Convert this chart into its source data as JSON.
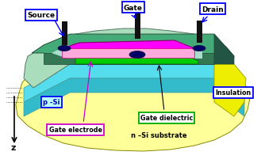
{
  "bg_color": "#ffffff",
  "labels": {
    "source": "Source",
    "gate": "Gate",
    "drain": "Drain",
    "p_si": "p -Si",
    "gate_electrode": "Gate electrode",
    "gate_dielectric": "Gate dielectric",
    "n_si_substrate": "n –Si substrate",
    "insulation": "Insulation"
  },
  "colors": {
    "substrate_yellow": "#ffff99",
    "p_si_cyan": "#55ddee",
    "p_si_cyan_dark": "#33bbcc",
    "top_light_green": "#aaddcc",
    "frame_green_top": "#44aa77",
    "frame_green_front": "#337755",
    "frame_green_right": "#225544",
    "gate_top_magenta": "#ff00ff",
    "gate_front_pink": "#ffaadd",
    "gate_dielectric_green": "#00cc00",
    "insulation_yellow": "#eeee00",
    "post_black": "#111111",
    "contact_darkblue": "#000066",
    "wavy_edge": "#88ccaa"
  }
}
